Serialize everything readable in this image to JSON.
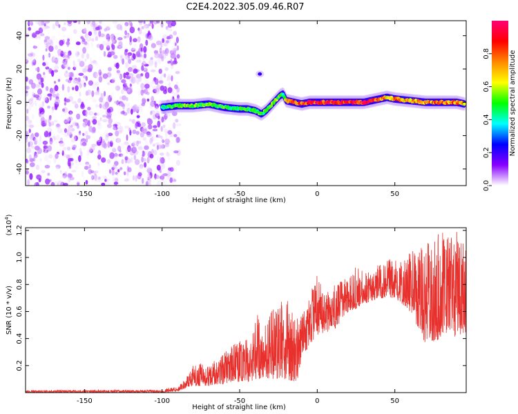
{
  "title": "C2E4.2022.305.09.46.R07",
  "chart_data": [
    {
      "type": "heatmap",
      "name": "spectrogram",
      "xlabel": "Height of straight line (km)",
      "ylabel": "Frequency (Hz)",
      "xlim": [
        -188,
        96
      ],
      "ylim": [
        -50,
        49
      ],
      "xticks": [
        -150,
        -100,
        -50,
        0,
        50
      ],
      "yticks": [
        -40,
        -20,
        0,
        20,
        40
      ],
      "colorbar": {
        "label": "Normalized spectral amplitude",
        "range": [
          0.0,
          1.0
        ],
        "ticks": [
          0.0,
          0.2,
          0.4,
          0.6,
          0.8
        ],
        "colors": [
          "#ffffff",
          "#8800ff",
          "#0000ff",
          "#00ffff",
          "#00ff00",
          "#ffff00",
          "#ff8800",
          "#ff0000",
          "#ff0077"
        ]
      },
      "noise_region_km": [
        -188,
        -95
      ],
      "ridge": {
        "x": [
          -100,
          -90,
          -80,
          -70,
          -60,
          -50,
          -45,
          -40,
          -36,
          -33,
          -30,
          -27,
          -24,
          -22,
          -20,
          -15,
          -10,
          -5,
          0,
          10,
          20,
          30,
          40,
          45,
          50,
          60,
          70,
          80,
          90,
          95
        ],
        "y": [
          -3,
          -2,
          -2,
          -1,
          -3,
          -4,
          -4,
          -5,
          -7,
          -5,
          -2,
          1,
          4,
          5,
          1,
          0,
          -1,
          0,
          0,
          0,
          0,
          0,
          2,
          3,
          2,
          1,
          0,
          0,
          0,
          -1
        ],
        "amplitude": [
          0.45,
          0.55,
          0.6,
          0.55,
          0.55,
          0.5,
          0.5,
          0.5,
          0.55,
          0.55,
          0.55,
          0.6,
          0.55,
          0.5,
          0.7,
          0.9,
          0.85,
          0.95,
          0.95,
          0.95,
          0.95,
          0.95,
          0.9,
          0.7,
          0.8,
          0.75,
          0.8,
          0.8,
          0.8,
          0.7
        ]
      },
      "isolated_blob": {
        "x": -37,
        "y": 17,
        "amplitude": 0.4
      }
    },
    {
      "type": "line",
      "name": "snr",
      "xlabel": "Height of straight line (km)",
      "ylabel": "SNR (10 * v/v)",
      "y_scale_label": "(x10",
      "y_scale_exponent": "4",
      "y_scale_suffix": ")",
      "xlim": [
        -188,
        96
      ],
      "ylim": [
        0,
        1.22
      ],
      "xticks": [
        -150,
        -100,
        -50,
        0,
        50
      ],
      "yticks": [
        0.2,
        0.4,
        0.6,
        0.8,
        1.0,
        1.2
      ],
      "color": "#e8302c",
      "envelope": {
        "x": [
          -188,
          -100,
          -90,
          -85,
          -80,
          -75,
          -70,
          -60,
          -55,
          -50,
          -45,
          -42,
          -40,
          -35,
          -30,
          -25,
          -20,
          -15,
          -12,
          -10,
          -5,
          0,
          5,
          10,
          20,
          25,
          30,
          40,
          50,
          60,
          65,
          70,
          80,
          85,
          90,
          96
        ],
        "low": [
          0.0,
          0.0,
          0.01,
          0.03,
          0.05,
          0.05,
          0.05,
          0.06,
          0.08,
          0.08,
          0.08,
          0.08,
          0.1,
          0.1,
          0.1,
          0.1,
          0.1,
          0.08,
          0.1,
          0.25,
          0.35,
          0.42,
          0.45,
          0.45,
          0.6,
          0.62,
          0.65,
          0.7,
          0.7,
          0.6,
          0.45,
          0.35,
          0.4,
          0.45,
          0.4,
          0.45
        ],
        "high": [
          0.02,
          0.02,
          0.05,
          0.1,
          0.2,
          0.25,
          0.2,
          0.3,
          0.35,
          0.38,
          0.45,
          0.4,
          0.62,
          0.5,
          0.6,
          0.68,
          0.7,
          0.58,
          0.55,
          0.6,
          0.72,
          0.88,
          0.75,
          0.8,
          0.85,
          0.95,
          0.9,
          0.95,
          1.0,
          1.08,
          1.05,
          1.1,
          1.2,
          1.18,
          1.2,
          1.12
        ]
      }
    }
  ]
}
